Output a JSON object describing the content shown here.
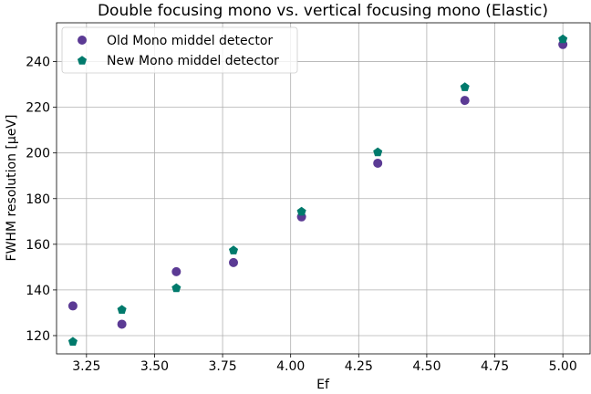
{
  "chart_data": {
    "type": "scatter",
    "title": "Double focusing mono vs. vertical focusing mono (Elastic)",
    "xlabel": "Ef",
    "ylabel": "FWHM resolution [μeV]",
    "xlim": [
      3.14,
      5.1
    ],
    "ylim": [
      112,
      257
    ],
    "xticks": [
      3.25,
      3.5,
      3.75,
      4.0,
      4.25,
      4.5,
      4.75,
      5.0
    ],
    "xtick_labels": [
      "3.25",
      "3.50",
      "3.75",
      "4.00",
      "4.25",
      "4.50",
      "4.75",
      "5.00"
    ],
    "yticks": [
      120,
      140,
      160,
      180,
      200,
      220,
      240
    ],
    "ytick_labels": [
      "120",
      "140",
      "160",
      "180",
      "200",
      "220",
      "240"
    ],
    "grid": true,
    "legend_position": "top-left",
    "series": [
      {
        "name": "Old Mono middel detector",
        "marker": "circle",
        "color": "#5b3a94",
        "x": [
          3.2,
          3.38,
          3.58,
          3.79,
          4.04,
          4.32,
          4.64,
          5.0
        ],
        "y": [
          133,
          125,
          148,
          152,
          172,
          195.5,
          223,
          247.5
        ]
      },
      {
        "name": "New Mono middel detector",
        "marker": "pentagon",
        "color": "#007a6c",
        "x": [
          3.2,
          3.38,
          3.58,
          3.79,
          4.04,
          4.32,
          4.64,
          5.0
        ],
        "y": [
          117.5,
          131.5,
          141,
          157.5,
          174.5,
          200.5,
          229,
          250
        ]
      }
    ]
  }
}
